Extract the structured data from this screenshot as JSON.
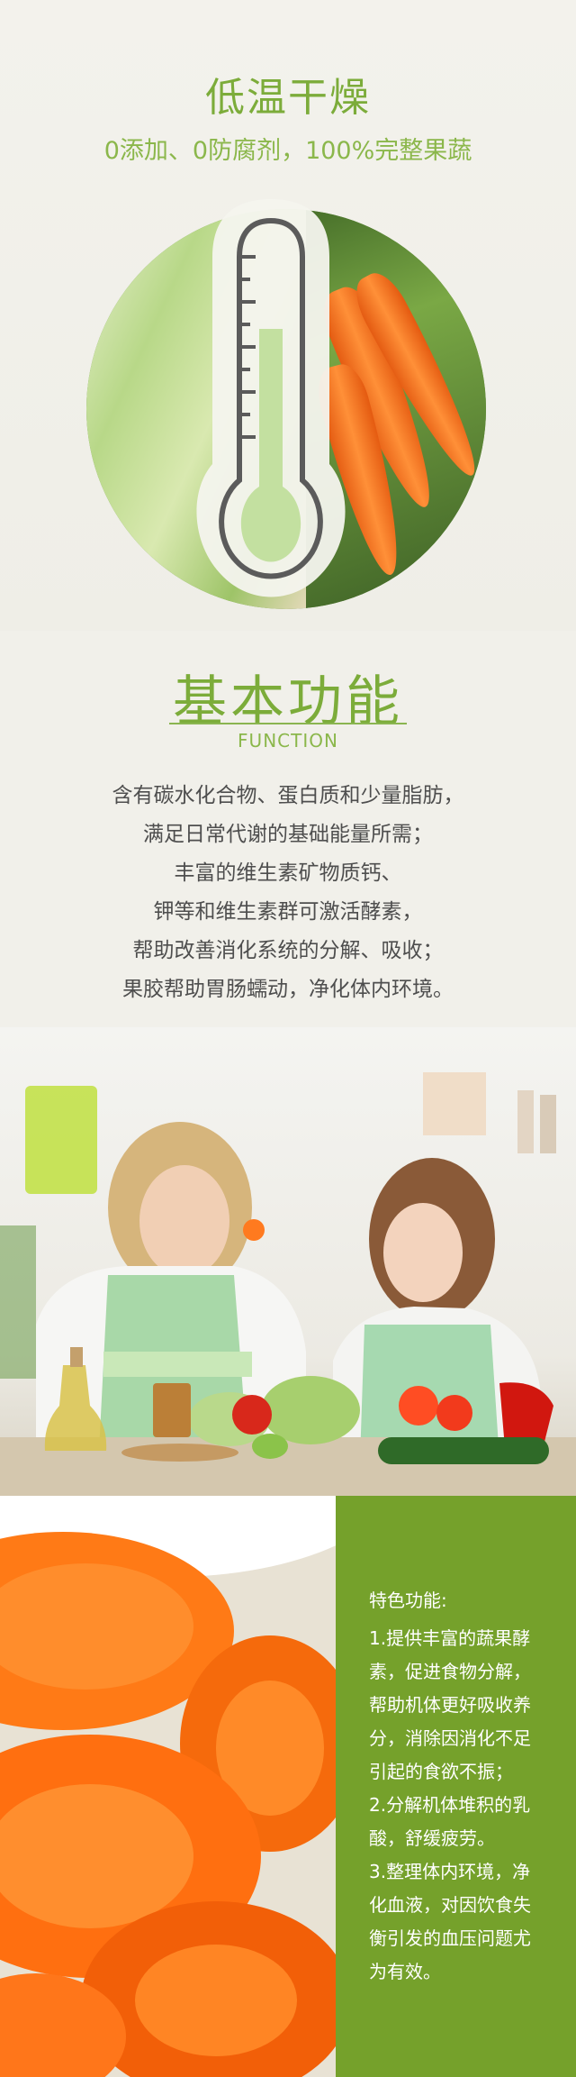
{
  "hero": {
    "title": "低温干燥",
    "subtitle": "0添加、0防腐剂，100%完整果蔬"
  },
  "function": {
    "title": "基本功能",
    "subtitle": "FUNCTION",
    "lines": [
      "含有碳水化合物、蛋白质和少量脂肪，",
      "满足日常代谢的基础能量所需；",
      "丰富的维生素矿物质钙、",
      "钾等和维生素群可激活酵素，",
      "帮助改善消化系统的分解、吸收；",
      "果胶帮助胃肠蠕动，净化体内环境。"
    ]
  },
  "features": {
    "title": "特色功能:",
    "lines": [
      "1.提供丰富的蔬果酵",
      "素，促进食物分解，",
      "帮助机体更好吸收养",
      "分，消除因消化不足",
      "引起的食欲不振；",
      " 2.分解机体堆积的乳",
      "酸，舒缓疲劳。",
      "3.整理体内环境，净",
      "化血液，对因饮食失",
      "衡引发的血压问题尤",
      "为有效。"
    ]
  },
  "colors": {
    "accent_green": "#7cac3a",
    "panel_green": "#75a12b",
    "text_gray": "#4e4e4e",
    "carrot_orange": "#ff7a1f"
  }
}
